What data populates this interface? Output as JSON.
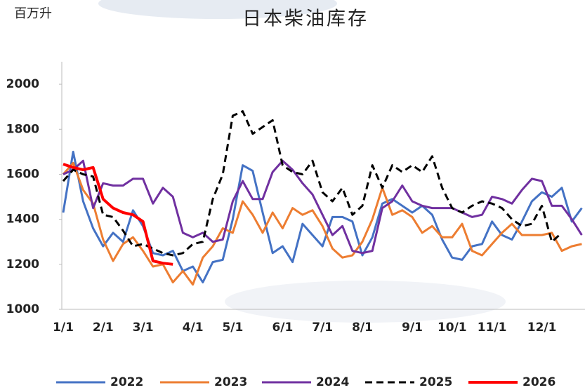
{
  "chart_data": {
    "type": "line",
    "title": "日本柴油库存",
    "y_label": "百万升",
    "categories": [
      "1/1",
      null,
      null,
      null,
      "2/1",
      null,
      null,
      null,
      "3/1",
      null,
      null,
      null,
      null,
      "4/1",
      null,
      null,
      null,
      "5/1",
      null,
      null,
      null,
      null,
      "6/1",
      null,
      null,
      null,
      "7/1",
      null,
      null,
      null,
      "8/1",
      null,
      null,
      null,
      null,
      "9/1",
      null,
      null,
      null,
      "10/1",
      null,
      null,
      null,
      "11/1",
      null,
      null,
      null,
      null,
      "12/1",
      null,
      null,
      null,
      null
    ],
    "ylim": [
      1000,
      2100
    ],
    "yticks": [
      1000,
      1200,
      1400,
      1600,
      1800,
      2000
    ],
    "legend": "bottom",
    "series": [
      {
        "name": "2022",
        "color": "#4472c4",
        "dashed": false,
        "values": [
          1430,
          1700,
          1480,
          1360,
          1280,
          1340,
          1300,
          1440,
          1370,
          1250,
          1240,
          1260,
          1170,
          1190,
          1120,
          1210,
          1220,
          1400,
          1640,
          1615,
          1430,
          1250,
          1280,
          1210,
          1380,
          1330,
          1280,
          1410,
          1410,
          1390,
          1240,
          1320,
          1470,
          1490,
          1460,
          1430,
          1460,
          1420,
          1310,
          1230,
          1220,
          1280,
          1290,
          1390,
          1330,
          1310,
          1390,
          1480,
          1520,
          1500,
          1540,
          1390,
          1450
        ]
      },
      {
        "name": "2023",
        "color": "#ed7d31",
        "dashed": false,
        "values": [
          1600,
          1650,
          1530,
          1470,
          1310,
          1215,
          1290,
          1320,
          1260,
          1190,
          1200,
          1120,
          1170,
          1110,
          1230,
          1280,
          1360,
          1340,
          1480,
          1420,
          1340,
          1430,
          1360,
          1450,
          1420,
          1440,
          1370,
          1270,
          1230,
          1240,
          1300,
          1400,
          1540,
          1420,
          1440,
          1410,
          1340,
          1370,
          1320,
          1320,
          1380,
          1260,
          1240,
          1290,
          1340,
          1380,
          1330,
          1330,
          1330,
          1340,
          1260,
          1280,
          1290
        ]
      },
      {
        "name": "2024",
        "color": "#7030a0",
        "dashed": false,
        "values": [
          1600,
          1620,
          1660,
          1450,
          1560,
          1550,
          1550,
          1580,
          1580,
          1470,
          1540,
          1500,
          1340,
          1320,
          1340,
          1300,
          1310,
          1480,
          1570,
          1490,
          1490,
          1610,
          1660,
          1620,
          1560,
          1510,
          1420,
          1330,
          1370,
          1260,
          1250,
          1260,
          1450,
          1480,
          1550,
          1480,
          1460,
          1450,
          1450,
          1450,
          1430,
          1410,
          1420,
          1500,
          1490,
          1470,
          1530,
          1580,
          1570,
          1460,
          1460,
          1400,
          1330
        ]
      },
      {
        "name": "2025",
        "color": "#000000",
        "dashed": true,
        "values": [
          1570,
          1620,
          1600,
          1590,
          1420,
          1410,
          1350,
          1280,
          1290,
          1270,
          1250,
          1240,
          1250,
          1290,
          1300,
          1490,
          1600,
          1860,
          1880,
          1780,
          1810,
          1840,
          1640,
          1610,
          1600,
          1660,
          1520,
          1480,
          1540,
          1420,
          1460,
          1640,
          1540,
          1640,
          1610,
          1640,
          1610,
          1680,
          1540,
          1450,
          1430,
          1460,
          1480,
          1470,
          1450,
          1400,
          1370,
          1380,
          1460,
          1300,
          1340,
          null,
          null
        ]
      },
      {
        "name": "2026",
        "color": "#ff0000",
        "dashed": false,
        "values": [
          1645,
          1630,
          1620,
          1630,
          1490,
          1450,
          1430,
          1420,
          1390,
          1215,
          1205,
          1200,
          null,
          null,
          null,
          null,
          null,
          null,
          null,
          null,
          null,
          null,
          null,
          null,
          null,
          null,
          null,
          null,
          null,
          null,
          null,
          null,
          null,
          null,
          null,
          null,
          null,
          null,
          null,
          null,
          null,
          null,
          null,
          null,
          null,
          null,
          null,
          null,
          null,
          null,
          null,
          null,
          null
        ]
      }
    ]
  }
}
